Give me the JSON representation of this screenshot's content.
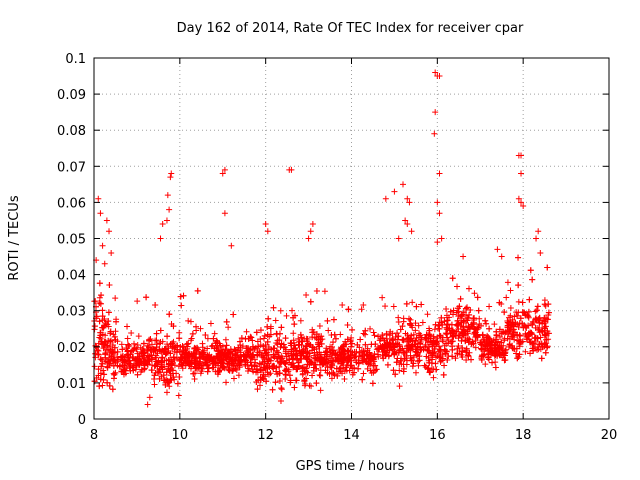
{
  "chart_data": {
    "type": "scatter",
    "title": "Day 162 of 2014, Rate Of TEC Index for receiver cpar",
    "xlabel": "GPS time / hours",
    "ylabel": "ROTI / TECUs",
    "xlim": [
      8,
      20
    ],
    "ylim": [
      0,
      0.1
    ],
    "xticks": [
      8,
      10,
      12,
      14,
      16,
      18,
      20
    ],
    "yticks": [
      0,
      0.01,
      0.02,
      0.03,
      0.04,
      0.05,
      0.06,
      0.07,
      0.08,
      0.09,
      0.1
    ],
    "xtick_labels": [
      "8",
      "10",
      "12",
      "14",
      "16",
      "18",
      "20"
    ],
    "ytick_labels": [
      "0",
      "0.01",
      "0.02",
      "0.03",
      "0.04",
      "0.05",
      "0.06",
      "0.07",
      "0.08",
      "0.09",
      "0.1"
    ],
    "grid": true,
    "marker": "plus",
    "color": "#ff0000",
    "data_x_range": [
      8.0,
      18.6
    ],
    "points": [
      [
        8.1,
        0.061
      ],
      [
        8.15,
        0.057
      ],
      [
        8.3,
        0.055
      ],
      [
        8.35,
        0.052
      ],
      [
        8.2,
        0.048
      ],
      [
        8.4,
        0.046
      ],
      [
        8.05,
        0.044
      ],
      [
        8.25,
        0.043
      ],
      [
        9.7,
        0.055
      ],
      [
        9.75,
        0.058
      ],
      [
        9.8,
        0.068
      ],
      [
        9.78,
        0.067
      ],
      [
        9.72,
        0.062
      ],
      [
        9.6,
        0.054
      ],
      [
        9.55,
        0.05
      ],
      [
        11.05,
        0.069
      ],
      [
        11.0,
        0.068
      ],
      [
        11.05,
        0.057
      ],
      [
        11.2,
        0.048
      ],
      [
        12.0,
        0.054
      ],
      [
        12.05,
        0.052
      ],
      [
        12.55,
        0.069
      ],
      [
        12.6,
        0.069
      ],
      [
        13.1,
        0.054
      ],
      [
        13.05,
        0.052
      ],
      [
        13.0,
        0.05
      ],
      [
        14.8,
        0.061
      ],
      [
        15.0,
        0.063
      ],
      [
        15.2,
        0.065
      ],
      [
        15.3,
        0.061
      ],
      [
        15.35,
        0.06
      ],
      [
        15.25,
        0.055
      ],
      [
        15.3,
        0.054
      ],
      [
        15.4,
        0.052
      ],
      [
        15.1,
        0.05
      ],
      [
        15.95,
        0.096
      ],
      [
        16.0,
        0.095
      ],
      [
        16.05,
        0.095
      ],
      [
        15.95,
        0.085
      ],
      [
        15.93,
        0.079
      ],
      [
        16.05,
        0.068
      ],
      [
        16.0,
        0.06
      ],
      [
        16.05,
        0.057
      ],
      [
        16.1,
        0.05
      ],
      [
        16.0,
        0.049
      ],
      [
        16.6,
        0.045
      ],
      [
        17.4,
        0.047
      ],
      [
        17.5,
        0.045
      ],
      [
        17.9,
        0.073
      ],
      [
        17.95,
        0.073
      ],
      [
        17.95,
        0.068
      ],
      [
        17.9,
        0.061
      ],
      [
        17.95,
        0.06
      ],
      [
        18.0,
        0.059
      ],
      [
        18.35,
        0.052
      ],
      [
        18.3,
        0.05
      ],
      [
        18.4,
        0.046
      ],
      [
        9.25,
        0.004
      ],
      [
        9.3,
        0.006
      ]
    ]
  }
}
